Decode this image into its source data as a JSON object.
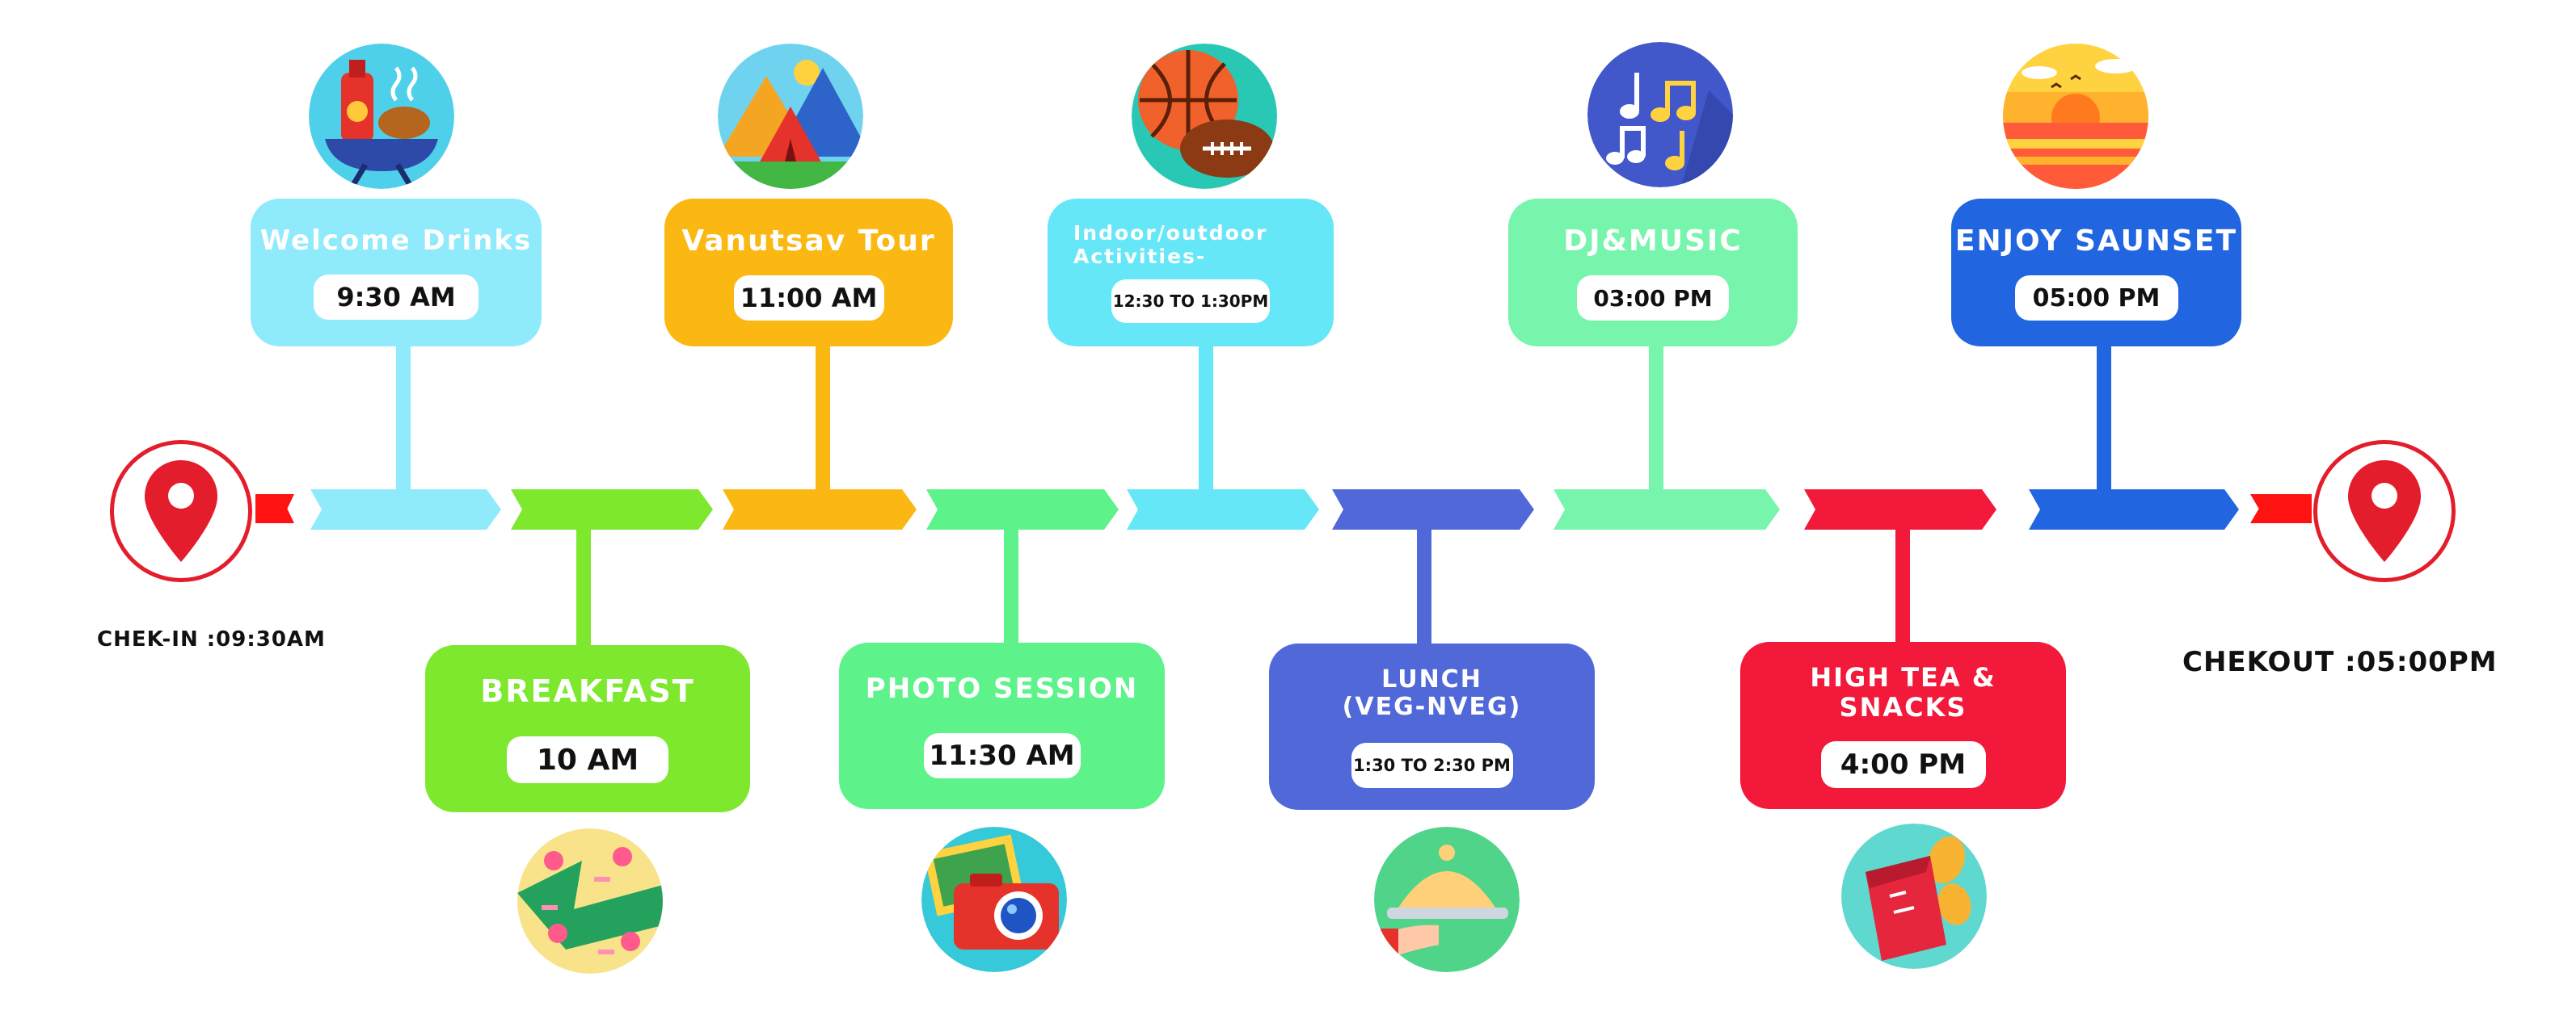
{
  "timeline": {
    "checkin": "CHEK-IN :09:30AM",
    "checkout": "CHEKOUT :05:00PM",
    "events": [
      {
        "id": "welcome",
        "title": "Welcome Drinks",
        "time": "9:30 AM",
        "color": "#8feafb",
        "icon": "grill-drinks-icon"
      },
      {
        "id": "breakfast",
        "title": "BREAKFAST",
        "time": "10 AM",
        "color": "#7de82e",
        "icon": "pizza-icon"
      },
      {
        "id": "vanutsav",
        "title": "Vanutsav Tour",
        "time": "11:00 AM",
        "color": "#fbb813",
        "icon": "camping-tent-icon"
      },
      {
        "id": "photo",
        "title": "PHOTO SESSION",
        "time": "11:30 AM",
        "color": "#5ef28b",
        "icon": "camera-icon"
      },
      {
        "id": "activities",
        "title": "Indoor/outdoor\nActivities-",
        "time": "12:30 TO 1:30PM",
        "color": "#66e7f8",
        "icon": "sports-ball-icon"
      },
      {
        "id": "lunch",
        "title": "LUNCH\n(VEG-NVEG)",
        "time": "1:30 TO 2:30 PM",
        "color": "#5068d8",
        "icon": "serving-cloche-icon"
      },
      {
        "id": "djmusic",
        "title": "DJ&MUSIC",
        "time": "03:00 PM",
        "color": "#78f5ac",
        "icon": "music-notes-icon"
      },
      {
        "id": "hightea",
        "title": "HIGH TEA &\nSNACKS",
        "time": "4:00 PM",
        "color": "#f2193a",
        "icon": "chips-snack-icon"
      },
      {
        "id": "sunset",
        "title": "ENJOY SAUNSET",
        "time": "05:00 PM",
        "color": "#2166e0",
        "icon": "sunset-icon"
      }
    ]
  }
}
